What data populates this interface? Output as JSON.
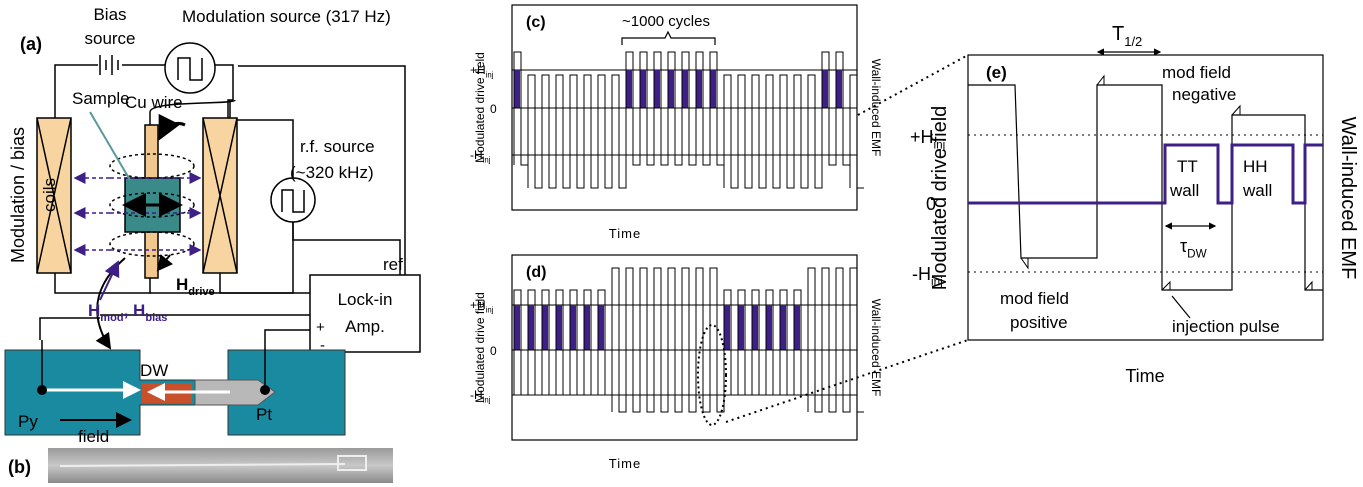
{
  "panel_a": {
    "label": "(a)",
    "bias_source": [
      "Bias",
      "source"
    ],
    "modulation_source": "Modulation source (317 Hz)",
    "sample": "Sample",
    "cu_wire": "Cu wire",
    "rf_source": [
      "r.f. source",
      "(~320 kHz)"
    ],
    "coils": [
      "Modulation / bias",
      "coils"
    ],
    "ref": "ref",
    "lock_in": [
      "Lock-in",
      "Amp."
    ],
    "plus": "+",
    "minus": "-",
    "h_drive": [
      "H",
      "drive"
    ],
    "h_mod_bias": [
      "H",
      "mod",
      ", H",
      "bias"
    ]
  },
  "device": {
    "dw": "DW",
    "py": "Py",
    "pt": "Pt",
    "field": "field"
  },
  "panel_b": {
    "label": "(b)"
  },
  "panel_c": {
    "label": "(c)",
    "cycles": "~1000 cycles",
    "plus": [
      "+H",
      "inj"
    ],
    "zero": "0",
    "minus": [
      "-H",
      "inj"
    ],
    "y_label": "Modulated drive field",
    "y2_label": "Wall-induced EMF",
    "x_label": "Time"
  },
  "panel_d": {
    "label": "(d)",
    "plus": [
      "+H",
      "inj"
    ],
    "zero": "0",
    "minus": [
      "-H",
      "inj"
    ],
    "y_label": "Modulated drive field",
    "y2_label": "Wall-induced EMF",
    "x_label": "Time"
  },
  "panel_e": {
    "label": "(e)",
    "half_period": [
      "T",
      "1/2"
    ],
    "mod_negative": [
      "mod field",
      "negative"
    ],
    "plus": [
      "+H",
      "inj"
    ],
    "zero": "0",
    "minus": [
      "-H",
      "inj"
    ],
    "tt_wall": [
      "TT",
      "wall"
    ],
    "hh_wall": [
      "HH",
      "wall"
    ],
    "tau": [
      "τ",
      "DW"
    ],
    "mod_positive": [
      "mod field",
      "positive"
    ],
    "injection": "injection pulse",
    "y_label": "Modulated drive field",
    "y2_label": "Wall-induced EMF",
    "x_label": "Time"
  }
}
